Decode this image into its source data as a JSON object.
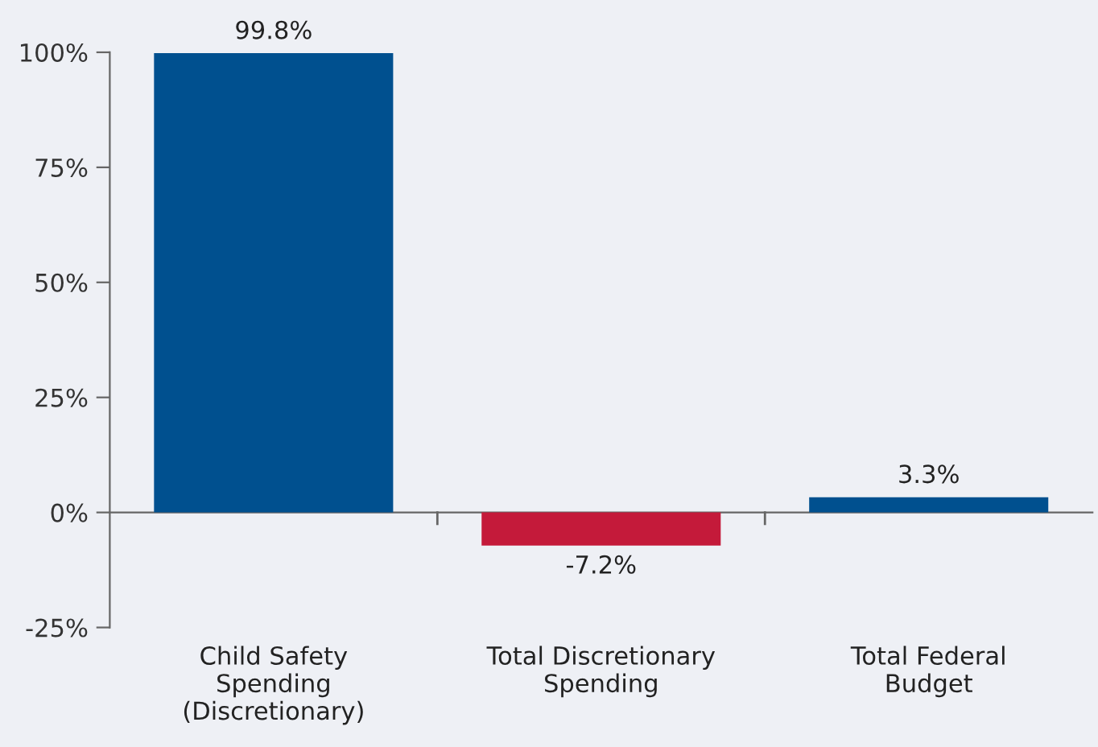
{
  "chart_data": {
    "type": "bar",
    "categories": [
      "Child Safety\nSpending\n(Discretionary)",
      "Total Discretionary\nSpending",
      "Total Federal\nBudget"
    ],
    "values": [
      99.8,
      -7.2,
      3.3
    ],
    "colors": [
      "#00508f",
      "#c41a3a",
      "#00508f"
    ],
    "value_labels": [
      "99.8%",
      "-7.2%",
      "3.3%"
    ],
    "ylim": [
      -25,
      100
    ],
    "yticks": [
      {
        "value": -25,
        "label": "-25%"
      },
      {
        "value": 0,
        "label": "0%"
      },
      {
        "value": 25,
        "label": "25%"
      },
      {
        "value": 50,
        "label": "50%"
      },
      {
        "value": 75,
        "label": "75%"
      },
      {
        "value": 100,
        "label": "100%"
      }
    ],
    "legend": false
  }
}
